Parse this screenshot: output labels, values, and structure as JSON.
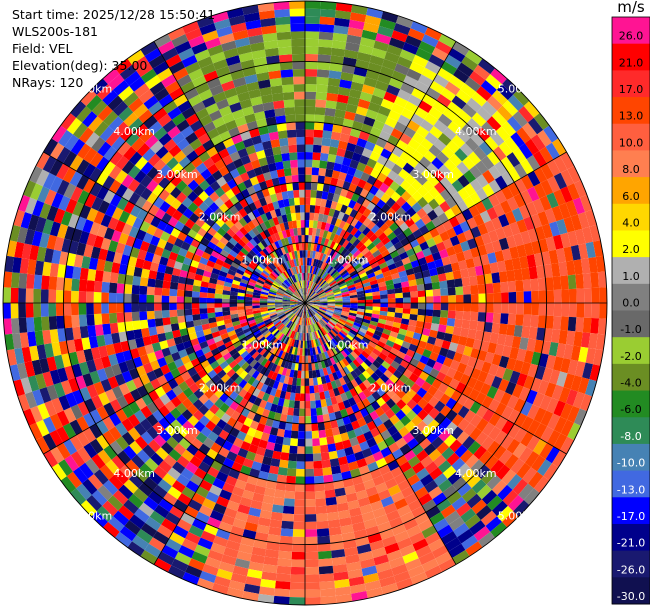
{
  "info": {
    "start_time": "Start time: 2025/12/28 15:50:41",
    "instrument": "WLS200s-181",
    "field": "Field: VEL",
    "elevation": "Elevation(deg): 35.00",
    "nrays": "NRays: 120"
  },
  "colorbar": {
    "unit": "m/s",
    "ticks": [
      "26.0",
      "21.0",
      "17.0",
      "13.0",
      "10.0",
      "8.0",
      "6.0",
      "4.0",
      "2.0",
      "1.0",
      "0.0",
      "-1.0",
      "-2.0",
      "-4.0",
      "-6.0",
      "-8.0",
      "-10.0",
      "-13.0",
      "-17.0",
      "-21.0",
      "-26.0",
      "-30.0"
    ],
    "colors": [
      "#ff1493",
      "#ff0000",
      "#ff2a2a",
      "#ff4500",
      "#ff5f3f",
      "#ff7f50",
      "#ffa500",
      "#ffd700",
      "#ffff00",
      "#b0b0b0",
      "#808080",
      "#696969",
      "#9acd32",
      "#6b8e23",
      "#228b22",
      "#2e8b57",
      "#4682b4",
      "#4169e1",
      "#0000ff",
      "#00008b",
      "#191970",
      "#101050"
    ]
  },
  "chart_data": {
    "type": "ppi",
    "title": "",
    "field": "VEL",
    "units": "m/s",
    "elevation_deg": 35.0,
    "nrays": 120,
    "range_rings_km": [
      1.0,
      2.0,
      3.0,
      4.0,
      5.0
    ],
    "range_ring_labels": [
      "1.00km",
      "2.00km",
      "3.00km",
      "4.00km",
      "5.00km"
    ],
    "max_range_km": 5.0,
    "color_levels": [
      -30.0,
      -26.0,
      -21.0,
      -17.0,
      -13.0,
      -10.0,
      -8.0,
      -6.0,
      -4.0,
      -2.0,
      -1.0,
      0.0,
      1.0,
      2.0,
      4.0,
      6.0,
      8.0,
      10.0,
      13.0,
      17.0,
      21.0,
      26.0
    ],
    "dominant_regions": [
      {
        "azimuth_deg": [
          25,
          60
        ],
        "range_km": [
          2.5,
          4.5
        ],
        "velocity": 2.0
      },
      {
        "azimuth_deg": [
          60,
          130
        ],
        "range_km": [
          2.5,
          5.0
        ],
        "velocity": 13.0
      },
      {
        "azimuth_deg": [
          150,
          200
        ],
        "range_km": [
          3.0,
          5.0
        ],
        "velocity": 10.0
      },
      {
        "azimuth_deg": [
          330,
          30
        ],
        "range_km": [
          3.0,
          4.5
        ],
        "velocity": -2.0
      }
    ]
  }
}
